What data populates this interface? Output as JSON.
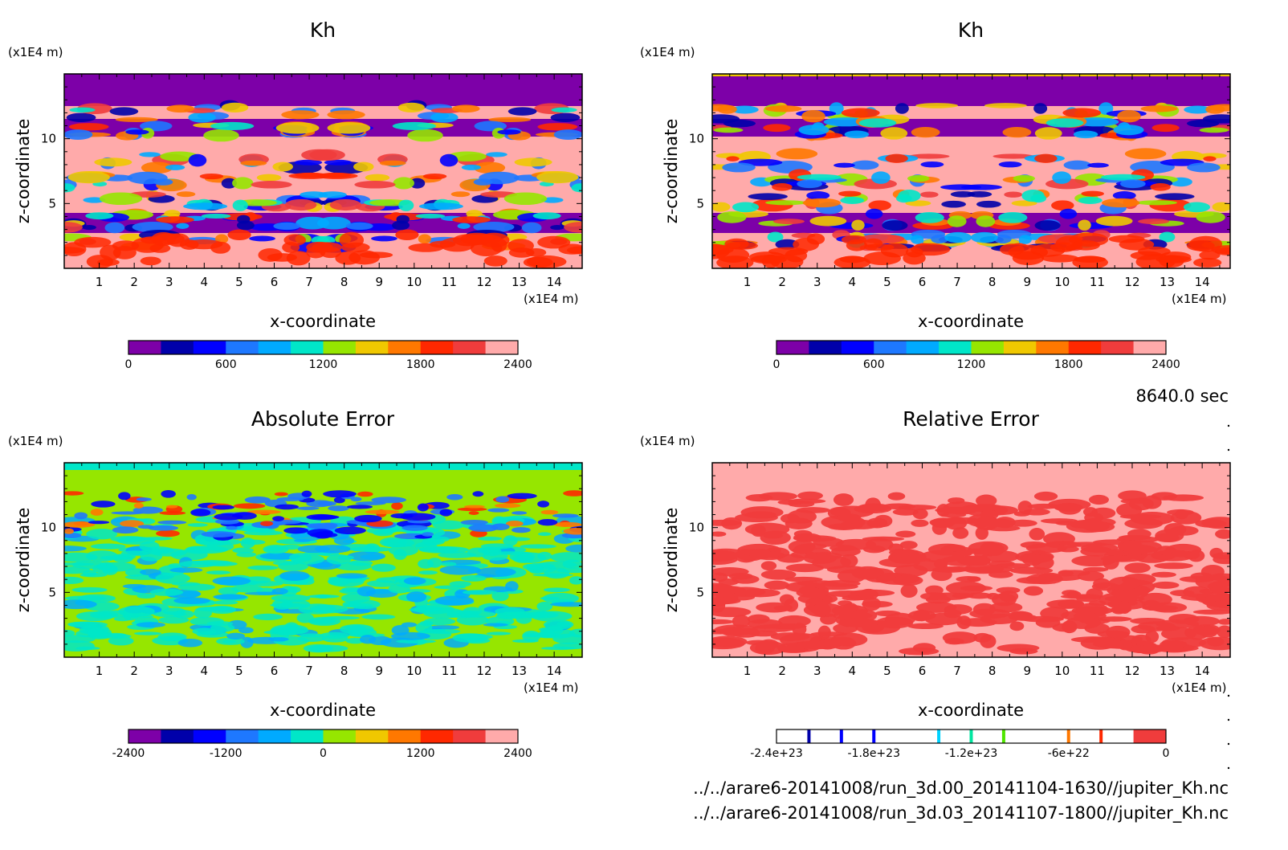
{
  "figure": {
    "time_label": "8640.0 sec",
    "file_paths": [
      "../../arare6-20141008/run_3d.00_20141104-1630//jupiter_Kh.nc",
      "../../arare6-20141008/run_3d.03_20141107-1800//jupiter_Kh.nc"
    ]
  },
  "colors": {
    "kh_levels": [
      "#7d00a8",
      "#0000aa",
      "#0000ff",
      "#1e78ff",
      "#00aaff",
      "#00e6c8",
      "#96e600",
      "#f0c800",
      "#ff7800",
      "#ff2800",
      "#f03c3c",
      "#ffaaaa"
    ],
    "rel_marks": [
      "#0000aa",
      "#0000ff",
      "#0000ff",
      "#00d2ff",
      "#00e6a0",
      "#50e600",
      "#ff7800",
      "#ff2800",
      "#f03c3c"
    ]
  },
  "chart_data": [
    {
      "type": "heatmap",
      "title": "Kh",
      "xlabel": "x-coordinate",
      "ylabel": "z-coordinate",
      "x_unit": "(x1E4 m)",
      "y_unit": "(x1E4 m)",
      "x_ticks": [
        "1",
        "2",
        "3",
        "4",
        "5",
        "6",
        "7",
        "8",
        "9",
        "10",
        "11",
        "12",
        "13",
        "14"
      ],
      "y_ticks": [
        "5",
        "10"
      ],
      "xlim": [
        0,
        14.8
      ],
      "ylim": [
        0,
        15
      ],
      "colorbar": {
        "min": 0,
        "max": 2400,
        "tick_values": [
          0,
          600,
          1200,
          1800,
          2400
        ],
        "tick_labels": [
          "0",
          "600",
          "1200",
          "1800",
          "2400"
        ],
        "levels": 12
      }
    },
    {
      "type": "heatmap",
      "title": "Kh",
      "xlabel": "x-coordinate",
      "ylabel": "z-coordinate",
      "x_unit": "(x1E4 m)",
      "y_unit": "(x1E4 m)",
      "x_ticks": [
        "1",
        "2",
        "3",
        "4",
        "5",
        "6",
        "7",
        "8",
        "9",
        "10",
        "11",
        "12",
        "13",
        "14"
      ],
      "y_ticks": [
        "5",
        "10"
      ],
      "xlim": [
        0,
        14.8
      ],
      "ylim": [
        0,
        15
      ],
      "colorbar": {
        "min": 0,
        "max": 2400,
        "tick_values": [
          0,
          600,
          1200,
          1800,
          2400
        ],
        "tick_labels": [
          "0",
          "600",
          "1200",
          "1800",
          "2400"
        ],
        "levels": 12
      }
    },
    {
      "type": "heatmap",
      "title": "Absolute Error",
      "xlabel": "x-coordinate",
      "ylabel": "z-coordinate",
      "x_unit": "(x1E4 m)",
      "y_unit": "(x1E4 m)",
      "x_ticks": [
        "1",
        "2",
        "3",
        "4",
        "5",
        "6",
        "7",
        "8",
        "9",
        "10",
        "11",
        "12",
        "13",
        "14"
      ],
      "y_ticks": [
        "5",
        "10"
      ],
      "xlim": [
        0,
        14.8
      ],
      "ylim": [
        0,
        15
      ],
      "colorbar": {
        "min": -2400,
        "max": 2400,
        "tick_values": [
          -2400,
          -1200,
          0,
          1200,
          2400
        ],
        "tick_labels": [
          "-2400",
          "-1200",
          "0",
          "1200",
          "2400"
        ],
        "levels": 12
      }
    },
    {
      "type": "heatmap",
      "title": "Relative Error",
      "xlabel": "x-coordinate",
      "ylabel": "z-coordinate",
      "x_unit": "(x1E4 m)",
      "y_unit": "(x1E4 m)",
      "x_ticks": [
        "1",
        "2",
        "3",
        "4",
        "5",
        "6",
        "7",
        "8",
        "9",
        "10",
        "11",
        "12",
        "13",
        "14"
      ],
      "y_ticks": [
        "5",
        "10"
      ],
      "xlim": [
        0,
        14.8
      ],
      "ylim": [
        0,
        15
      ],
      "colorbar": {
        "min": -2.4e+23,
        "max": 0,
        "tick_values": [
          -2.4e+23,
          -1.8e+23,
          -1.2e+23,
          -6e+22,
          0
        ],
        "tick_labels": [
          "-2.4e+23",
          "-1.8e+23",
          "-1.2e+23",
          "-6e+22",
          "0"
        ],
        "levels": 12
      }
    }
  ]
}
